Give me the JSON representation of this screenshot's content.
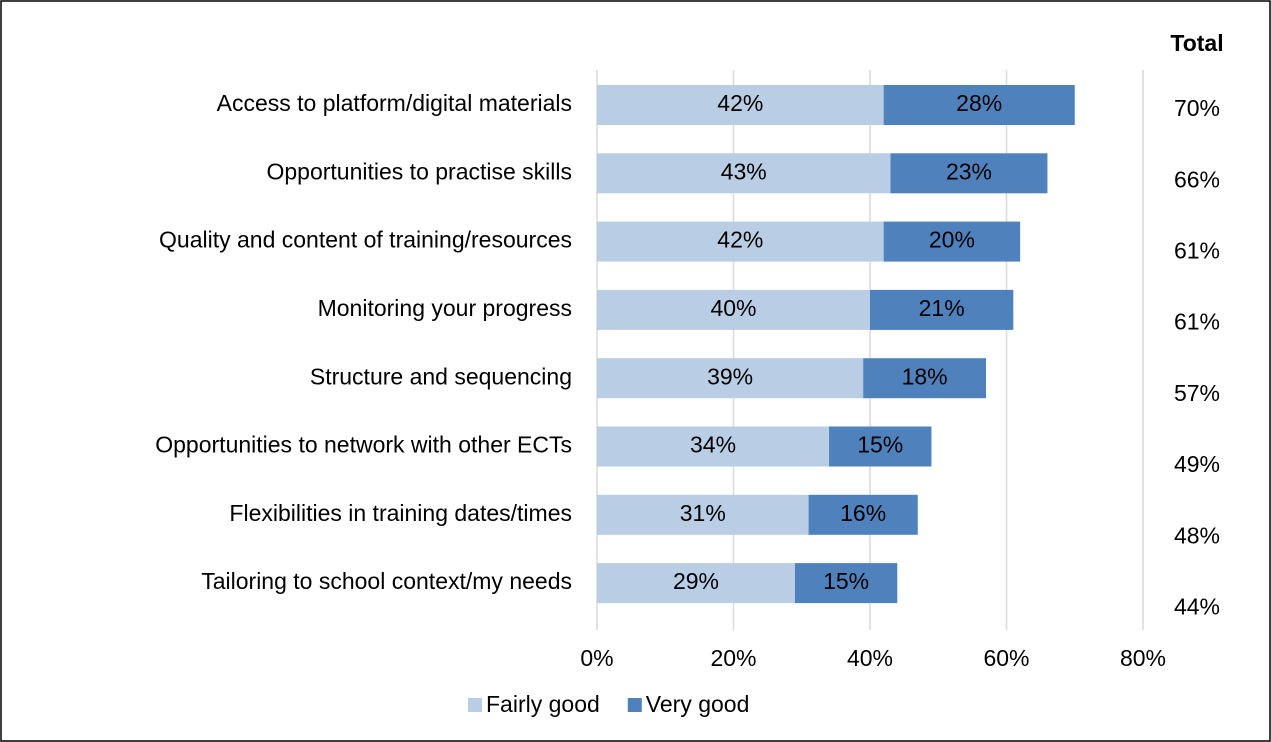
{
  "chart_data": {
    "type": "stacked-barh",
    "categories": [
      "Access to platform/digital materials",
      "Opportunities to practise skills",
      "Quality and content of training/resources",
      "Monitoring your progress",
      "Structure and sequencing",
      "Opportunities to network with other ECTs",
      "Flexibilities in training dates/times",
      "Tailoring to school context/my needs"
    ],
    "series": [
      {
        "name": "Fairly good",
        "color": "#b9cde5",
        "values": [
          42,
          43,
          42,
          40,
          39,
          34,
          31,
          29
        ],
        "value_labels": [
          "42%",
          "43%",
          "42%",
          "40%",
          "39%",
          "34%",
          "31%",
          "29%"
        ]
      },
      {
        "name": "Very good",
        "color": "#4f81bd",
        "values": [
          28,
          23,
          20,
          21,
          18,
          15,
          16,
          15
        ],
        "value_labels": [
          "28%",
          "23%",
          "20%",
          "21%",
          "18%",
          "15%",
          "16%",
          "15%"
        ]
      }
    ],
    "total_header": "Total",
    "totals": [
      70,
      66,
      61,
      61,
      57,
      49,
      48,
      44
    ],
    "total_labels": [
      "70%",
      "66%",
      "61%",
      "61%",
      "57%",
      "49%",
      "48%",
      "44%"
    ],
    "xlim": [
      0,
      80
    ],
    "xticks": [
      {
        "value": 0,
        "label": "0%"
      },
      {
        "value": 20,
        "label": "20%"
      },
      {
        "value": 40,
        "label": "40%"
      },
      {
        "value": 60,
        "label": "60%"
      },
      {
        "value": 80,
        "label": "80%"
      }
    ],
    "grid": true,
    "legend": "bottom"
  }
}
